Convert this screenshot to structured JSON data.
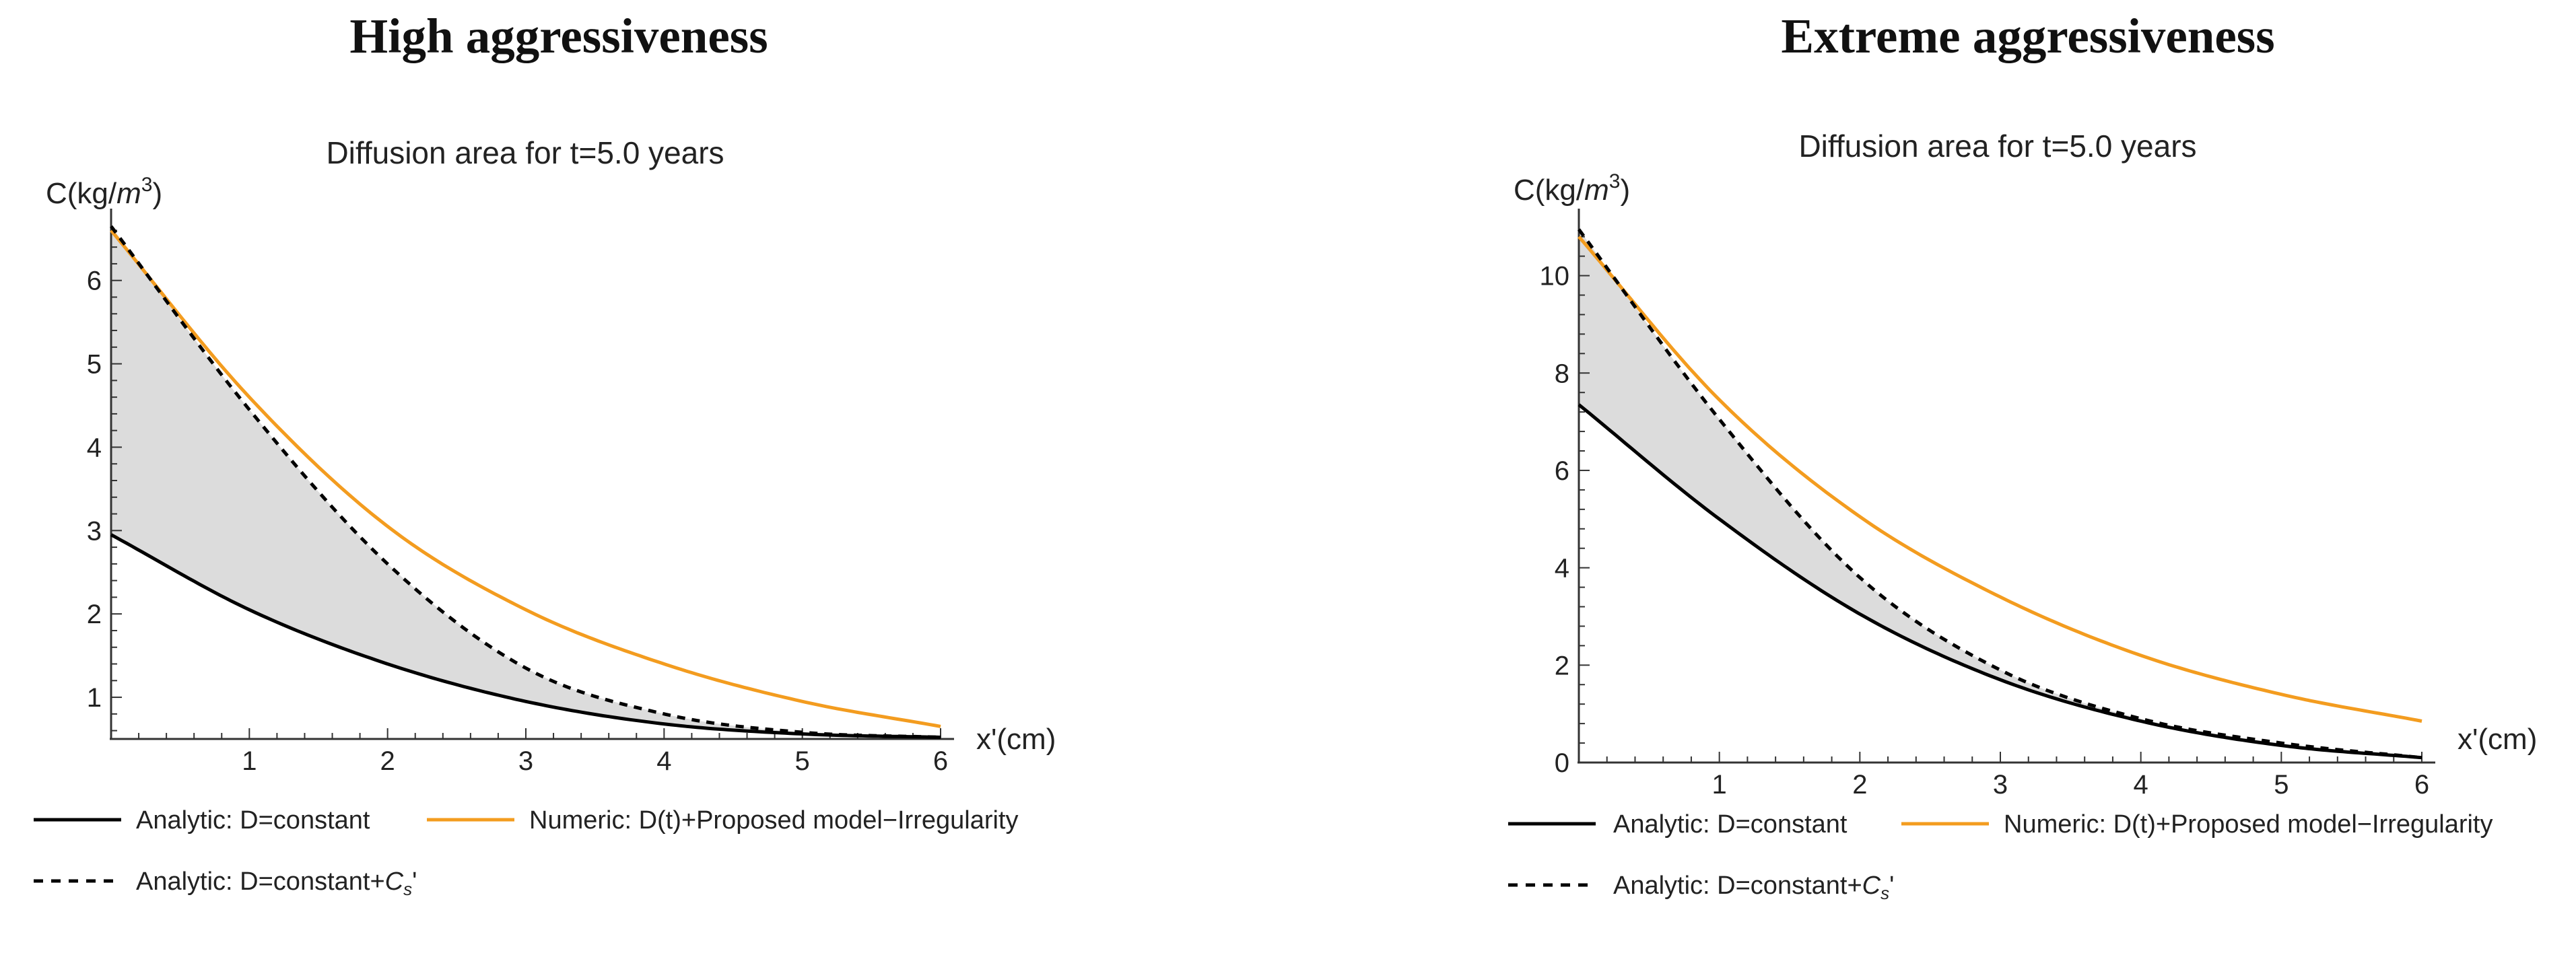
{
  "figure": {
    "colors": {
      "analytic": "#000000",
      "numeric": "#f39c1f",
      "dashed": "#000000",
      "fill": "#dcdcdc",
      "axis": "#333333"
    }
  },
  "chart_data": [
    {
      "type": "line",
      "panel_heading": "High aggressiveness",
      "title": "Diffusion area for t=5.0 years",
      "xlabel": "x'(cm)",
      "ylabel": "C(kg/m3)",
      "ylabel_base": "C(kg/",
      "ylabel_unit": "m",
      "ylabel_exp": "3",
      "ylabel_close": ")",
      "xlim": [
        0,
        6
      ],
      "ylim": [
        0.5,
        6.7
      ],
      "x_origin": 0,
      "y_origin": 0.5,
      "xticks": [
        1,
        2,
        3,
        4,
        5,
        6
      ],
      "yticks": [
        1,
        2,
        3,
        4,
        5,
        6
      ],
      "shaded_between": [
        "Analytic: D=constant+Cs'",
        "Analytic: D=constant"
      ],
      "series": [
        {
          "name": "Analytic: D=constant",
          "style": "solid",
          "color": "#000000",
          "x": [
            0,
            1,
            2,
            3,
            4,
            5,
            6
          ],
          "y": [
            2.95,
            2.05,
            1.4,
            0.95,
            0.68,
            0.56,
            0.52
          ]
        },
        {
          "name": "Numeric: D(t)+Proposed model−Irregularity",
          "style": "solid",
          "color": "#f39c1f",
          "x": [
            0,
            1,
            2,
            3,
            4,
            5,
            6
          ],
          "y": [
            6.6,
            4.6,
            3.05,
            2.05,
            1.4,
            0.95,
            0.65
          ]
        },
        {
          "name": "Analytic: D=constant+Cs'",
          "style": "dashed",
          "color": "#000000",
          "x": [
            0,
            1,
            2,
            3,
            4,
            5,
            6
          ],
          "y": [
            6.65,
            4.45,
            2.6,
            1.35,
            0.8,
            0.58,
            0.52
          ]
        }
      ],
      "legend": {
        "analytic": "Analytic: D=constant",
        "numeric": "Numeric: D(t)+Proposed model−Irregularity",
        "dashed_base": "Analytic: D=constant+",
        "dashed_sym": "C",
        "dashed_sub": "s",
        "dashed_tail": "'"
      }
    },
    {
      "type": "line",
      "panel_heading": "Extreme aggressiveness",
      "title": "Diffusion area for t=5.0 years",
      "xlabel": "x'(cm)",
      "ylabel": "C(kg/m3)",
      "ylabel_base": "C(kg/",
      "ylabel_unit": "m",
      "ylabel_exp": "3",
      "ylabel_close": ")",
      "xlim": [
        0,
        6
      ],
      "ylim": [
        0,
        11.1
      ],
      "x_origin": 0,
      "y_origin": 0,
      "xticks": [
        1,
        2,
        3,
        4,
        5,
        6
      ],
      "yticks": [
        0,
        2,
        4,
        6,
        8,
        10
      ],
      "shaded_between": [
        "Analytic: D=constant+Cs'",
        "Analytic: D=constant"
      ],
      "series": [
        {
          "name": "Analytic: D=constant",
          "style": "solid",
          "color": "#000000",
          "x": [
            0,
            1,
            2,
            3,
            4,
            5,
            6
          ],
          "y": [
            7.35,
            5.0,
            3.05,
            1.7,
            0.85,
            0.35,
            0.1
          ]
        },
        {
          "name": "Numeric: D(t)+Proposed model−Irregularity",
          "style": "solid",
          "color": "#f39c1f",
          "x": [
            0,
            1,
            2,
            3,
            4,
            5,
            6
          ],
          "y": [
            10.8,
            7.45,
            5.05,
            3.4,
            2.2,
            1.4,
            0.85
          ]
        },
        {
          "name": "Analytic: D=constant+Cs'",
          "style": "dashed",
          "color": "#000000",
          "x": [
            0,
            1,
            2,
            3,
            4,
            5,
            6
          ],
          "y": [
            10.95,
            7.05,
            3.8,
            1.9,
            0.9,
            0.4,
            0.1
          ]
        }
      ],
      "legend": {
        "analytic": "Analytic: D=constant",
        "numeric": "Numeric: D(t)+Proposed model−Irregularity",
        "dashed_base": "Analytic: D=constant+",
        "dashed_sym": "C",
        "dashed_sub": "s",
        "dashed_tail": "'"
      }
    }
  ]
}
